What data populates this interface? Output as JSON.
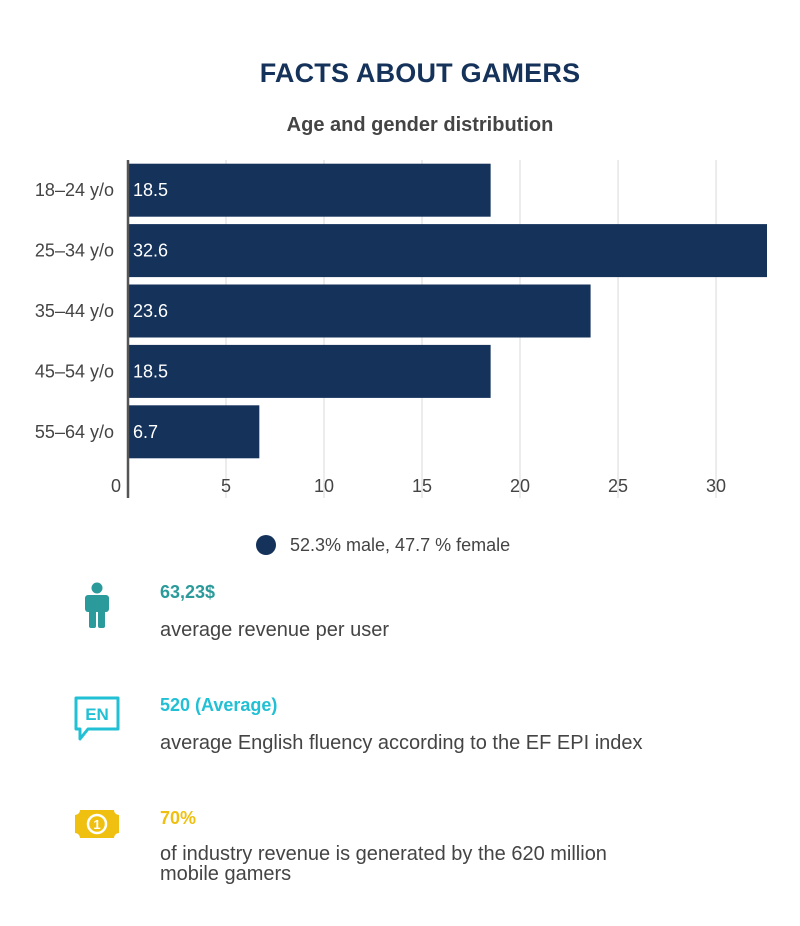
{
  "header": {
    "title": "FACTS ABOUT GAMERS",
    "subtitle": "Age and gender distribution"
  },
  "colors": {
    "bar": "#14325a",
    "teal": "#2a9a9a",
    "cyan": "#22c0d4",
    "yellow": "#f0c010",
    "grid": "#d9d9d9",
    "axis": "#555555",
    "text": "#444444"
  },
  "chart_data": {
    "type": "bar",
    "orientation": "horizontal",
    "title": "Age and gender distribution",
    "categories": [
      "18–24 y/o",
      "25–34 y/o",
      "35–44 y/o",
      "45–54 y/o",
      "55–64 y/o"
    ],
    "values": [
      18.5,
      32.6,
      23.6,
      18.5,
      6.7
    ],
    "value_labels": [
      "18.5",
      "32.6",
      "23.6",
      "18.5",
      "6.7"
    ],
    "xticks": [
      0,
      5,
      10,
      15,
      20,
      25,
      30
    ],
    "xlim": [
      0,
      32.6
    ],
    "grid": true,
    "legend": [
      "52.3% male, 47.7 % female"
    ],
    "legend_position": "bottom-center"
  },
  "legend": {
    "label": "52.3% male, 47.7 % female"
  },
  "facts": [
    {
      "icon": "person-icon",
      "value": "63,23$",
      "description": "average revenue per user"
    },
    {
      "icon": "language-en-icon",
      "icon_text": "EN",
      "value": "520 (Average)",
      "description": "average English fluency according to the EF EPI index"
    },
    {
      "icon": "money-bill-icon",
      "icon_text": "1",
      "value": "70%",
      "description_line1": "of industry revenue is generated by the 620 million",
      "description_line2": "mobile gamers"
    }
  ]
}
